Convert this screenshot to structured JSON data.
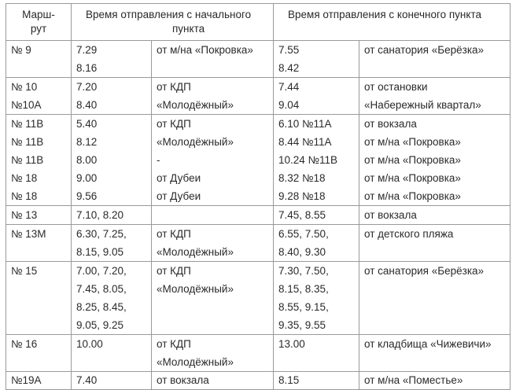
{
  "header": {
    "route_line1": "Марш-",
    "route_line2": "рут",
    "start_line1": "Время отправления с начального",
    "start_line2": "пункта",
    "end_line1": "Время отправления с конечного пункта"
  },
  "rows": [
    {
      "route": [
        "№ 9"
      ],
      "start_times": [
        "7.29",
        "8.16"
      ],
      "start_place": [
        "от м/на «Покровка»"
      ],
      "end_times": [
        "7.55",
        "8.42"
      ],
      "end_place": [
        "от санатория «Берёзка»"
      ]
    },
    {
      "route": [
        "№ 10",
        "№10А"
      ],
      "start_times": [
        "7.20",
        "8.40"
      ],
      "start_place": [
        "от КДП",
        "«Молодёжный»"
      ],
      "end_times": [
        "7.44",
        "9.04"
      ],
      "end_place": [
        "от остановки",
        "«Набережный квартал»"
      ]
    },
    {
      "route": [
        "№ 11В",
        "№ 11В",
        "№ 11В",
        "№ 18",
        "№ 18"
      ],
      "start_times": [
        "5.40",
        "8.12",
        "8.00",
        "9.00",
        "9.56"
      ],
      "start_place": [
        "от КДП",
        "«Молодёжный»",
        "-",
        "от Дубеи",
        "от Дубеи"
      ],
      "end_times": [
        "6.10 №11А",
        "8.44 №11А",
        "10.24 №11В",
        "8.32 №18",
        "9.28 №18"
      ],
      "end_place": [
        "от вокзала",
        "от м/на «Покровка»",
        "от м/на «Покровка»",
        "от м/на «Покровка»",
        "от м/на «Покровка»"
      ]
    },
    {
      "route": [
        "№ 13"
      ],
      "start_times": [
        "7.10, 8.20"
      ],
      "start_place": [],
      "end_times": [
        "7.45, 8.55"
      ],
      "end_place": [
        "от вокзала"
      ]
    },
    {
      "route": [
        "№ 13М"
      ],
      "start_times": [
        "6.30, 7.25,",
        "8.15, 9.05"
      ],
      "start_place": [
        "от КДП",
        "«Молодёжный»"
      ],
      "end_times": [
        "6.55, 7.50,",
        "8.40, 9.30"
      ],
      "end_place": [
        "от детского пляжа"
      ]
    },
    {
      "route": [
        "№ 15"
      ],
      "start_times": [
        "7.00, 7.20,",
        "7.45, 8.05,",
        "8.25, 8.45,",
        "9.05, 9.25"
      ],
      "start_place": [
        "от КДП",
        "«Молодёжный»"
      ],
      "end_times": [
        "7.30, 7.50,",
        "8.15, 8.35,",
        "8.55, 9.15,",
        "9.35, 9.55"
      ],
      "end_place": [
        "от санатория «Берёзка»"
      ]
    },
    {
      "route": [
        "№ 16"
      ],
      "start_times": [
        "10.00"
      ],
      "start_place": [
        "от КДП",
        "«Молодёжный»"
      ],
      "end_times": [
        "13.00"
      ],
      "end_place": [
        "от кладбища «Чижевичи»"
      ]
    },
    {
      "route": [
        "№19А"
      ],
      "start_times": [
        "7.40"
      ],
      "start_place": [
        "от вокзала"
      ],
      "end_times": [
        "8.15"
      ],
      "end_place": [
        "от м/на «Поместье»"
      ]
    }
  ]
}
